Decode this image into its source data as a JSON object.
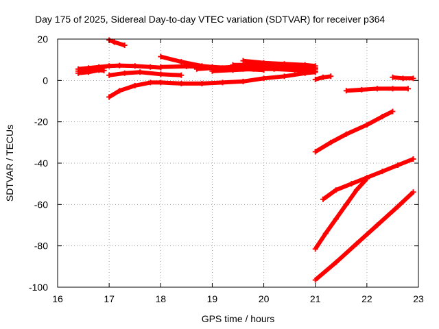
{
  "chart_data": {
    "type": "line",
    "title": "Day 175 of 2025, Sidereal Day-to-day VTEC variation (SDTVAR) for receiver p364",
    "xlabel": "GPS time / hours",
    "ylabel": "SDTVAR / TECUs",
    "xlim": [
      16,
      23
    ],
    "ylim": [
      -100,
      20
    ],
    "x_ticks": [
      16,
      17,
      18,
      19,
      20,
      21,
      22,
      23
    ],
    "y_ticks": [
      -100,
      -80,
      -60,
      -40,
      -20,
      0,
      20
    ],
    "x_tick_labels": [
      "16",
      "17",
      "18",
      "19",
      "20",
      "21",
      "22",
      "23"
    ],
    "y_tick_labels": [
      "-100",
      "-80",
      "-60",
      "-40",
      "-20",
      "0",
      "20"
    ],
    "grid": true,
    "color": "#ff0000",
    "series": [
      {
        "name": "s1",
        "x": [
          16.4,
          16.6,
          16.8,
          17.0,
          17.2,
          17.5,
          17.8,
          18.0
        ],
        "y": [
          5.5,
          6.0,
          6.5,
          7.0,
          7.2,
          7.0,
          6.5,
          6.2
        ]
      },
      {
        "name": "s2",
        "x": [
          16.4,
          16.6,
          16.8,
          16.9
        ],
        "y": [
          3.5,
          4.0,
          5.0,
          6.0
        ]
      },
      {
        "name": "s3",
        "x": [
          16.4,
          16.7,
          16.9
        ],
        "y": [
          4.5,
          5.0,
          4.8
        ]
      },
      {
        "name": "s4",
        "x": [
          17.0,
          17.1,
          17.3
        ],
        "y": [
          19.5,
          18.5,
          17.0
        ]
      },
      {
        "name": "s5",
        "x": [
          17.0,
          17.3,
          17.6,
          18.0,
          18.4
        ],
        "y": [
          2.5,
          3.5,
          4.0,
          3.0,
          2.5
        ]
      },
      {
        "name": "s6",
        "x": [
          17.0,
          17.2,
          17.5,
          17.8,
          18.0,
          18.4,
          18.8,
          19.2,
          19.6,
          20.0,
          20.4,
          20.8,
          21.0
        ],
        "y": [
          -8.0,
          -5.0,
          -2.5,
          -1.0,
          -1.0,
          -1.5,
          -1.5,
          -1.0,
          -0.5,
          1.0,
          2.0,
          3.5,
          4.0
        ]
      },
      {
        "name": "s7",
        "x": [
          18.0,
          18.4,
          18.8,
          19.2,
          19.6,
          20.0
        ],
        "y": [
          11.5,
          9.0,
          7.0,
          6.0,
          5.5,
          5.0
        ]
      },
      {
        "name": "s8",
        "x": [
          18.0,
          18.5,
          19.0,
          19.4
        ],
        "y": [
          6.5,
          6.8,
          6.5,
          6.0
        ]
      },
      {
        "name": "s9",
        "x": [
          18.7,
          19.0,
          19.4,
          19.8,
          20.2,
          20.6,
          21.0
        ],
        "y": [
          5.5,
          6.0,
          6.5,
          7.0,
          7.0,
          6.5,
          6.0
        ]
      },
      {
        "name": "s10",
        "x": [
          19.0,
          19.4,
          19.8,
          20.2,
          20.6,
          21.0
        ],
        "y": [
          4.5,
          5.0,
          5.5,
          5.5,
          5.0,
          4.5
        ]
      },
      {
        "name": "s11",
        "x": [
          19.6,
          20.0,
          20.4,
          20.8,
          21.0
        ],
        "y": [
          9.5,
          8.5,
          8.0,
          7.5,
          7.0
        ]
      },
      {
        "name": "s12",
        "x": [
          19.4,
          19.8,
          20.2,
          20.6,
          21.0
        ],
        "y": [
          7.5,
          7.5,
          7.0,
          6.5,
          5.5
        ]
      },
      {
        "name": "s13",
        "x": [
          21.0,
          21.15,
          21.3
        ],
        "y": [
          0.5,
          1.5,
          2.0
        ]
      },
      {
        "name": "s14",
        "x": [
          21.6,
          21.9,
          22.2,
          22.5,
          22.8
        ],
        "y": [
          -5.0,
          -4.5,
          -4.0,
          -4.0,
          -4.0
        ]
      },
      {
        "name": "s15",
        "x": [
          22.5,
          22.7,
          22.9
        ],
        "y": [
          1.5,
          1.0,
          1.0
        ]
      },
      {
        "name": "s16",
        "x": [
          21.0,
          21.3,
          21.6,
          22.0,
          22.3,
          22.5
        ],
        "y": [
          -34.5,
          -30.0,
          -26.0,
          -21.5,
          -17.5,
          -15.0
        ]
      },
      {
        "name": "s17",
        "x": [
          21.15,
          21.4,
          21.7,
          22.0,
          22.3,
          22.6,
          22.9
        ],
        "y": [
          -57.5,
          -53.0,
          -50.0,
          -47.0,
          -44.0,
          -41.0,
          -38.0
        ]
      },
      {
        "name": "s18",
        "x": [
          21.0,
          21.2,
          21.4,
          21.6,
          21.8,
          22.0
        ],
        "y": [
          -81.5,
          -74.0,
          -67.0,
          -60.0,
          -53.0,
          -47.5
        ]
      },
      {
        "name": "s19",
        "x": [
          21.0,
          21.4,
          21.8,
          22.2,
          22.6,
          22.9
        ],
        "y": [
          -96.5,
          -88.0,
          -79.0,
          -70.0,
          -61.0,
          -54.0
        ]
      }
    ]
  }
}
